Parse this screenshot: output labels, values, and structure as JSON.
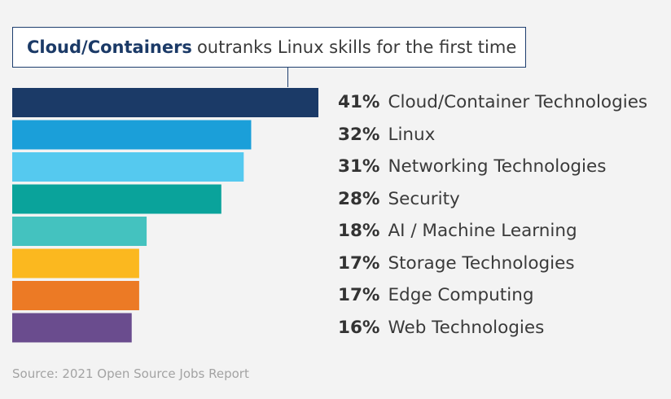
{
  "chart_data": {
    "type": "bar",
    "orientation": "horizontal",
    "title_strong": "Cloud/Containers",
    "title_rest": "outranks Linux skills for the first time",
    "categories": [
      "Cloud/Container Technologies",
      "Linux",
      "Networking Technologies",
      "Security",
      "AI / Machine Learning",
      "Storage Technologies",
      "Edge Computing",
      "Web Technologies"
    ],
    "values": [
      41,
      32,
      31,
      28,
      18,
      17,
      17,
      16
    ],
    "value_labels": [
      "41%",
      "32%",
      "31%",
      "28%",
      "18%",
      "17%",
      "17%",
      "16%"
    ],
    "colors": [
      "#1b3a67",
      "#1b9fd9",
      "#55c9ef",
      "#0aa39b",
      "#44c2bf",
      "#fbb81f",
      "#ec7a25",
      "#6a4c8e"
    ],
    "xlim": [
      0,
      41
    ],
    "grid": false,
    "legend": "none",
    "source": "Source: 2021 Open Source Jobs Report"
  }
}
